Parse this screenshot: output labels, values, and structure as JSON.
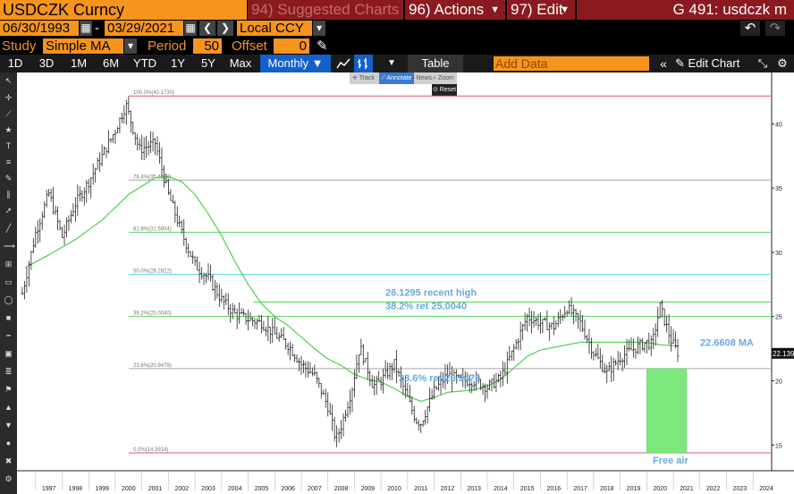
{
  "header": {
    "security": "USDCZK Curncy",
    "menu_suggested": "94) Suggested Charts",
    "menu_actions": "96) Actions",
    "menu_edit": "97) Edit",
    "function_title": "G 491: usdczk m"
  },
  "dates": {
    "start": "06/30/1993",
    "separator": "-",
    "end": "03/29/2021",
    "currency": "Local CCY"
  },
  "study": {
    "label": "Study",
    "type": "Simple MA",
    "period_label": "Period",
    "period": "50",
    "offset_label": "Offset",
    "offset": "0"
  },
  "toolbar": {
    "ranges": [
      "1D",
      "3D",
      "1M",
      "6M",
      "YTD",
      "1Y",
      "5Y",
      "Max"
    ],
    "frequency": "Monthly ▼",
    "table": "Table",
    "add_data_placeholder": "Add Data",
    "edit_chart": "Edit Chart"
  },
  "palette": {
    "track": "Track",
    "annotate": "Annotate",
    "news": "News",
    "zoom": "Zoom",
    "reset": "Reset"
  },
  "left_toolbar": {
    "favorites": "Favorites",
    "lines": "Lines",
    "style": "Style",
    "markers": "Markers"
  },
  "chart_data": {
    "type": "bar",
    "title": "",
    "x": {
      "ticks": [
        "1997",
        "1998",
        "1999",
        "2000",
        "2001",
        "2002",
        "2003",
        "2004",
        "2005",
        "2006",
        "2007",
        "2008",
        "2009",
        "2010",
        "2011",
        "2012",
        "2013",
        "2014",
        "2015",
        "2016",
        "2017",
        "2018",
        "2019",
        "2020",
        "2021",
        "2022",
        "2023",
        "2024"
      ],
      "range": [
        1996.3,
        2024.7
      ]
    },
    "y": {
      "ticks": [
        15,
        20,
        25,
        30,
        35,
        40
      ],
      "range": [
        13.0,
        44.0
      ]
    },
    "grid": false,
    "last_price": "22.1391",
    "price_series": {
      "name": "USDCZK",
      "x": [
        1996.5,
        1997.0,
        1997.5,
        1998.0,
        1998.5,
        1999.0,
        1999.5,
        2000.0,
        2000.4,
        2000.9,
        2001.5,
        2002.0,
        2002.5,
        2003.0,
        2003.5,
        2004.0,
        2004.5,
        2005.0,
        2005.5,
        2006.0,
        2006.5,
        2007.0,
        2007.5,
        2008.0,
        2008.3,
        2008.5,
        2008.9,
        2009.2,
        2009.7,
        2010.0,
        2010.5,
        2010.9,
        2011.3,
        2011.5,
        2012.0,
        2012.5,
        2013.0,
        2013.5,
        2014.0,
        2014.5,
        2015.0,
        2015.5,
        2016.0,
        2016.5,
        2017.0,
        2017.5,
        2018.0,
        2018.5,
        2019.0,
        2019.5,
        2020.0,
        2020.2,
        2020.5,
        2020.9,
        2021.2
      ],
      "y": [
        26.8,
        31.5,
        34.6,
        31.2,
        33.8,
        35.5,
        37.5,
        39.5,
        41.5,
        38.0,
        38.5,
        34.5,
        31.5,
        29.0,
        28.0,
        26.3,
        25.2,
        24.8,
        24.5,
        23.6,
        22.8,
        21.3,
        20.4,
        18.0,
        15.4,
        16.5,
        19.3,
        22.7,
        19.6,
        20.0,
        21.3,
        19.2,
        17.0,
        16.7,
        19.2,
        20.5,
        20.0,
        20.0,
        19.5,
        20.2,
        22.5,
        25.0,
        24.5,
        24.2,
        25.7,
        24.5,
        22.2,
        20.6,
        21.8,
        22.5,
        23.0,
        22.8,
        25.8,
        23.2,
        22.1
      ]
    },
    "ma_series": {
      "name": "Simple MA 50",
      "x": [
        1996.6,
        1997.5,
        1998.5,
        1999.5,
        2000.5,
        2001.5,
        2002.0,
        2002.5,
        2003.0,
        2003.5,
        2004.0,
        2004.5,
        2005.0,
        2005.5,
        2006.0,
        2006.5,
        2007.0,
        2007.5,
        2008.0,
        2008.5,
        2009.0,
        2009.5,
        2010.0,
        2010.5,
        2011.0,
        2011.5,
        2012.0,
        2012.5,
        2013.0,
        2013.5,
        2014.0,
        2014.5,
        2015.0,
        2015.5,
        2016.0,
        2016.5,
        2017.0,
        2017.5,
        2018.0,
        2018.5,
        2019.0,
        2019.5,
        2020.0,
        2020.5,
        2021.2
      ],
      "y": [
        28.8,
        29.8,
        31.0,
        32.5,
        34.5,
        35.8,
        35.9,
        35.5,
        34.5,
        33.0,
        31.3,
        29.3,
        27.5,
        26.0,
        25.0,
        24.3,
        23.4,
        22.5,
        21.7,
        21.2,
        20.5,
        20.1,
        19.9,
        19.4,
        18.8,
        18.4,
        18.7,
        19.1,
        19.2,
        19.3,
        19.6,
        20.1,
        21.0,
        21.9,
        22.4,
        22.6,
        22.8,
        23.0,
        23.0,
        23.0,
        23.0,
        23.0,
        23.0,
        22.8,
        22.7
      ]
    },
    "fib_levels": [
      {
        "label": "100.0%(42.1730)",
        "value": 42.173,
        "color": "#e05060"
      },
      {
        "label": "76.4%(35.6224)",
        "value": 35.6224,
        "color": "#a8a8a8"
      },
      {
        "label": "61.8%(31.5604)",
        "value": 31.5604,
        "color": "#54d454"
      },
      {
        "label": "50.0%(28.2822)",
        "value": 28.2822,
        "color": "#5ad6f0"
      },
      {
        "label": "38.2%(25.0040)",
        "value": 25.004,
        "color": "#54d454"
      },
      {
        "label": "23.6%(20.9479)",
        "value": 20.9479,
        "color": "#a8a8a8"
      },
      {
        "label": "0.0%(14.3914)",
        "value": 14.3914,
        "color": "#e05060"
      }
    ],
    "recent_high": {
      "value": 26.1295,
      "label": "26.1295 recent high",
      "from": 2005.2
    },
    "annotations": [
      {
        "text": "38.2% ret 25.0040"
      },
      {
        "text": "23.6% ret 20.9479"
      },
      {
        "text": "22.6608 MA"
      },
      {
        "text": "Free air"
      }
    ],
    "free_air_zone": {
      "x0": 2020.0,
      "x1": 2021.5,
      "y0": 14.3914,
      "y1": 20.9479
    },
    "colors": {
      "price": "#222222",
      "ma": "#4fd04f",
      "annotation_text": "#6aa8e0",
      "zone": "#7ee87e"
    }
  }
}
